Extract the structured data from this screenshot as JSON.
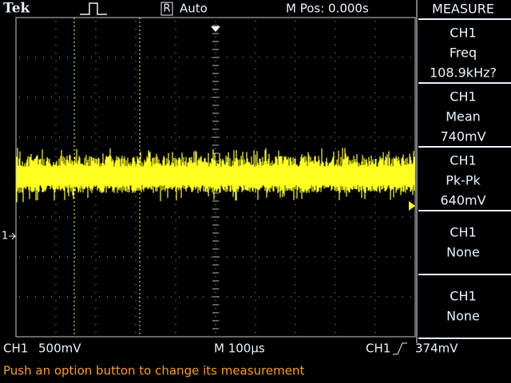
{
  "header": {
    "brand": "Tek",
    "trigger_badge": "R",
    "trigger_mode": "Auto",
    "position": "M Pos: 0.000s"
  },
  "measure_panel": {
    "title": "MEASURE",
    "items": [
      {
        "source": "CH1",
        "type": "Freq",
        "value": "108.9kHz?"
      },
      {
        "source": "CH1",
        "type": "Mean",
        "value": "740mV"
      },
      {
        "source": "CH1",
        "type": "Pk-Pk",
        "value": "640mV"
      },
      {
        "source": "CH1",
        "type": "None"
      },
      {
        "source": "CH1",
        "type": "None"
      }
    ]
  },
  "channel_marker": "1",
  "status": {
    "channel": "CH1",
    "volts_per_div": "500mV",
    "time_base": "M 100µs",
    "trigger_source": "CH1",
    "trigger_level": "374mV"
  },
  "message": "Push an option button to change its measurement"
}
